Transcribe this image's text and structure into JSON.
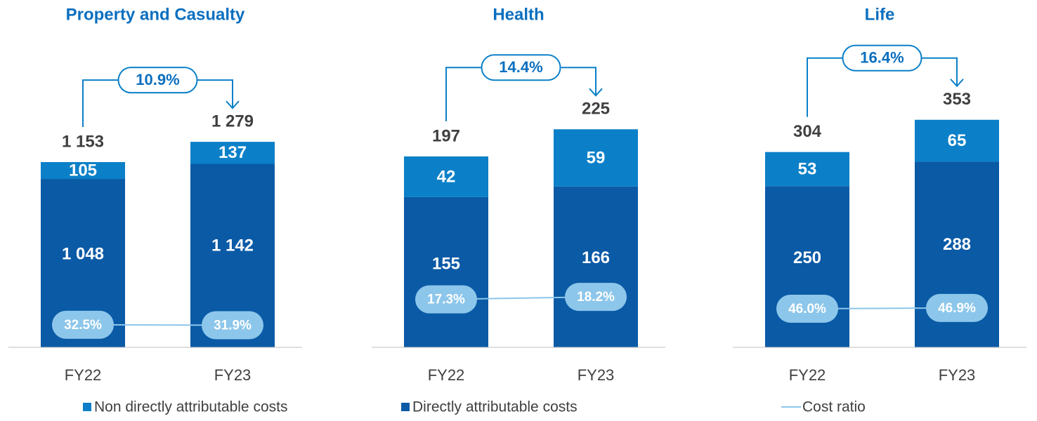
{
  "chart_data": [
    {
      "type": "bar",
      "title": "Property and Casualty",
      "categories": [
        "FY22",
        "FY23"
      ],
      "series": [
        {
          "name": "Directly attributable costs",
          "color": "#0a5aa6",
          "values": [
            1048,
            1142
          ],
          "value_labels": [
            "1 048",
            "1 142"
          ]
        },
        {
          "name": "Non directly attributable costs",
          "color": "#0b80c8",
          "values": [
            105,
            137
          ]
        },
        {
          "name": "Cost ratio",
          "color": "#8cc6ea",
          "type": "line",
          "axis": "y2",
          "values": [
            32.5,
            31.9
          ],
          "value_labels": [
            "32.5%",
            "31.9%"
          ]
        }
      ],
      "totals": [
        1153,
        1279
      ],
      "total_labels": [
        "1 153",
        "1 279"
      ],
      "growth": {
        "value": 10.9,
        "label": "10.9%"
      },
      "ylim": [
        0,
        1725
      ],
      "y2lim": [
        0,
        400
      ]
    },
    {
      "type": "bar",
      "title": "Health",
      "categories": [
        "FY22",
        "FY23"
      ],
      "series": [
        {
          "color": "#0a5aa6",
          "values": [
            155,
            166
          ]
        },
        {
          "color": "#0b80c8",
          "values": [
            42,
            59
          ]
        },
        {
          "color": "#8cc6ea",
          "type": "line",
          "axis": "y2",
          "values": [
            17.3,
            18.2
          ],
          "value_labels": [
            "17.3%",
            "18.2%"
          ]
        }
      ],
      "totals": [
        197,
        225
      ],
      "growth": {
        "value": 14.4,
        "label": "14.4%"
      },
      "ylim": [
        0,
        286
      ],
      "y2lim": [
        0,
        100
      ]
    },
    {
      "type": "bar",
      "title": "Life",
      "categories": [
        "FY22",
        "FY23"
      ],
      "series": [
        {
          "color": "#0a5aa6",
          "values": [
            250,
            288
          ]
        },
        {
          "color": "#0b80c8",
          "values": [
            53,
            65
          ]
        },
        {
          "color": "#8cc6ea",
          "type": "line",
          "axis": "y2",
          "values": [
            46.0,
            46.9
          ],
          "value_labels": [
            "46.0%",
            "46.9%"
          ]
        }
      ],
      "totals": [
        304,
        353
      ],
      "growth": {
        "value": 16.4,
        "label": "16.4%"
      },
      "ylim": [
        0,
        430
      ],
      "y2lim": [
        0,
        330
      ]
    }
  ]
}
